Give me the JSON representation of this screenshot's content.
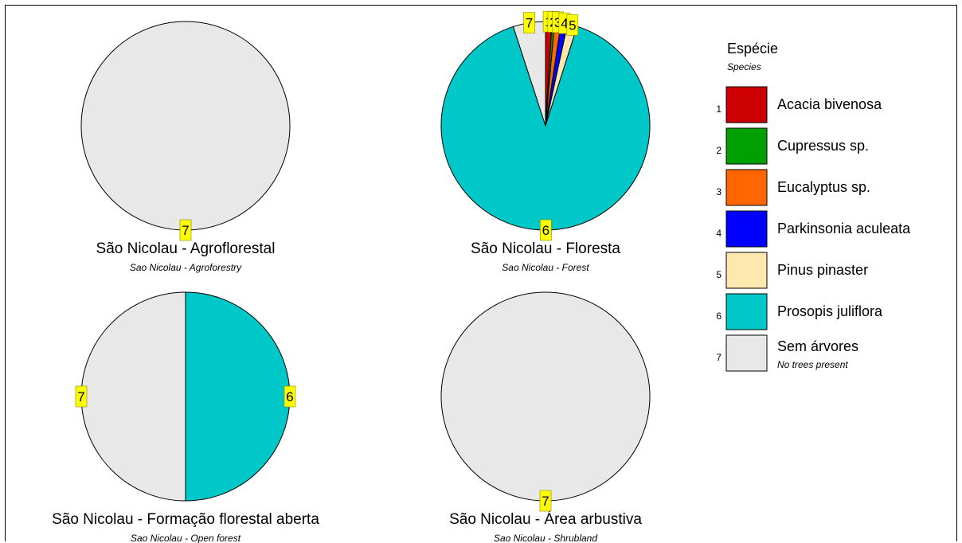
{
  "chart_data": {
    "type": "pie",
    "legend": {
      "title": "Espécie",
      "subtitle": "Species",
      "placement": "right",
      "entries": [
        {
          "num": "1",
          "label": "Acacia bivenosa",
          "sub": "",
          "color": "#cc0000"
        },
        {
          "num": "2",
          "label": "Cupressus sp.",
          "sub": "",
          "color": "#00a000"
        },
        {
          "num": "3",
          "label": "Eucalyptus sp.",
          "sub": "",
          "color": "#ff6600"
        },
        {
          "num": "4",
          "label": "Parkinsonia aculeata",
          "sub": "",
          "color": "#0000ff"
        },
        {
          "num": "5",
          "label": "Pinus pinaster",
          "sub": "",
          "color": "#ffe8b0"
        },
        {
          "num": "6",
          "label": "Prosopis juliflora",
          "sub": "",
          "color": "#00c8c8"
        },
        {
          "num": "7",
          "label": "Sem árvores",
          "sub": "No trees present",
          "color": "#e8e8e8"
        }
      ]
    },
    "pies": [
      {
        "title": "São Nicolau - Agroflorestal",
        "subtitle": "Sao Nicolau - Agroforestry",
        "slices": [
          {
            "category": "7",
            "value": 100
          }
        ]
      },
      {
        "title": "São Nicolau  - Floresta",
        "subtitle": "Sao Nicolau - Forest",
        "slices": [
          {
            "category": "1",
            "value": 1
          },
          {
            "category": "2",
            "value": 0.4
          },
          {
            "category": "3",
            "value": 1
          },
          {
            "category": "4",
            "value": 1
          },
          {
            "category": "5",
            "value": 1.5
          },
          {
            "category": "6",
            "value": 90
          },
          {
            "category": "7",
            "value": 5
          }
        ]
      },
      {
        "title": "São Nicolau - Formação florestal aberta",
        "subtitle": "Sao Nicolau - Open forest",
        "slices": [
          {
            "category": "6",
            "value": 50
          },
          {
            "category": "7",
            "value": 50
          }
        ]
      },
      {
        "title": "São Nicolau - Área arbustiva",
        "subtitle": "Sao Nicolau - Shrubland",
        "slices": [
          {
            "category": "7",
            "value": 100
          }
        ]
      }
    ]
  }
}
